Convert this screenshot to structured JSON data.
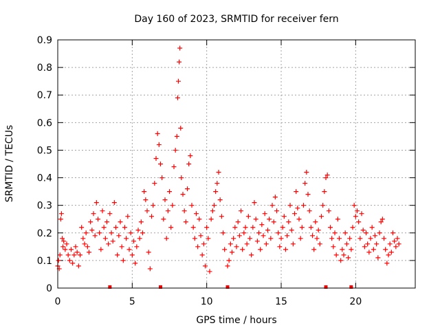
{
  "chart_data": {
    "type": "scatter",
    "title": "Day 160 of 2023, SRMTID for receiver fern",
    "xlabel": "GPS time / hours",
    "ylabel": "SRMTID / TECUs",
    "xlim": [
      0,
      24
    ],
    "ylim": [
      0,
      0.9
    ],
    "x_ticks": [
      0,
      5,
      10,
      15,
      20
    ],
    "y_ticks": [
      0,
      0.1,
      0.2,
      0.3,
      0.4,
      0.5,
      0.6,
      0.7,
      0.8,
      0.9
    ],
    "x_tick_labels": [
      "0",
      "5",
      "10",
      "15",
      "20"
    ],
    "y_tick_labels": [
      "0",
      "0.1",
      "0.2",
      "0.3",
      "0.4",
      "0.5",
      "0.6",
      "0.7",
      "0.8",
      "0.9"
    ],
    "grid": true,
    "marker": "+",
    "color": "#ff0000",
    "gap_markers_hours": [
      3.5,
      6.9,
      11.4,
      18.0,
      19.7
    ],
    "series": [
      {
        "name": "SRMTID",
        "points": [
          [
            0.0,
            0.08
          ],
          [
            0.05,
            0.1
          ],
          [
            0.1,
            0.07
          ],
          [
            0.15,
            0.12
          ],
          [
            0.2,
            0.25
          ],
          [
            0.25,
            0.27
          ],
          [
            0.3,
            0.18
          ],
          [
            0.35,
            0.15
          ],
          [
            0.4,
            0.17
          ],
          [
            0.5,
            0.14
          ],
          [
            0.6,
            0.16
          ],
          [
            0.7,
            0.12
          ],
          [
            0.8,
            0.1
          ],
          [
            0.9,
            0.14
          ],
          [
            1.0,
            0.09
          ],
          [
            1.1,
            0.12
          ],
          [
            1.2,
            0.15
          ],
          [
            1.3,
            0.13
          ],
          [
            1.4,
            0.08
          ],
          [
            1.5,
            0.12
          ],
          [
            1.6,
            0.22
          ],
          [
            1.7,
            0.18
          ],
          [
            1.8,
            0.16
          ],
          [
            1.9,
            0.2
          ],
          [
            2.0,
            0.15
          ],
          [
            2.1,
            0.13
          ],
          [
            2.2,
            0.24
          ],
          [
            2.3,
            0.21
          ],
          [
            2.4,
            0.27
          ],
          [
            2.5,
            0.19
          ],
          [
            2.6,
            0.31
          ],
          [
            2.7,
            0.25
          ],
          [
            2.8,
            0.2
          ],
          [
            2.9,
            0.14
          ],
          [
            3.0,
            0.28
          ],
          [
            3.1,
            0.22
          ],
          [
            3.2,
            0.18
          ],
          [
            3.3,
            0.24
          ],
          [
            3.4,
            0.16
          ],
          [
            3.5,
            0.27
          ],
          [
            3.6,
            0.2
          ],
          [
            3.7,
            0.17
          ],
          [
            3.8,
            0.31
          ],
          [
            3.9,
            0.22
          ],
          [
            4.0,
            0.12
          ],
          [
            4.1,
            0.19
          ],
          [
            4.2,
            0.24
          ],
          [
            4.3,
            0.15
          ],
          [
            4.4,
            0.1
          ],
          [
            4.5,
            0.22
          ],
          [
            4.6,
            0.18
          ],
          [
            4.7,
            0.26
          ],
          [
            4.8,
            0.14
          ],
          [
            4.9,
            0.2
          ],
          [
            5.0,
            0.12
          ],
          [
            5.1,
            0.17
          ],
          [
            5.2,
            0.09
          ],
          [
            5.3,
            0.15
          ],
          [
            5.4,
            0.21
          ],
          [
            5.5,
            0.18
          ],
          [
            5.6,
            0.24
          ],
          [
            5.7,
            0.2
          ],
          [
            5.8,
            0.35
          ],
          [
            5.9,
            0.32
          ],
          [
            6.0,
            0.28
          ],
          [
            6.1,
            0.13
          ],
          [
            6.2,
            0.07
          ],
          [
            6.3,
            0.26
          ],
          [
            6.4,
            0.3
          ],
          [
            6.5,
            0.38
          ],
          [
            6.6,
            0.47
          ],
          [
            6.7,
            0.56
          ],
          [
            6.8,
            0.52
          ],
          [
            6.9,
            0.45
          ],
          [
            7.0,
            0.4
          ],
          [
            7.1,
            0.25
          ],
          [
            7.2,
            0.32
          ],
          [
            7.3,
            0.18
          ],
          [
            7.4,
            0.28
          ],
          [
            7.5,
            0.35
          ],
          [
            7.6,
            0.22
          ],
          [
            7.7,
            0.3
          ],
          [
            7.8,
            0.44
          ],
          [
            7.9,
            0.5
          ],
          [
            8.0,
            0.55
          ],
          [
            8.05,
            0.69
          ],
          [
            8.1,
            0.75
          ],
          [
            8.15,
            0.82
          ],
          [
            8.2,
            0.87
          ],
          [
            8.25,
            0.58
          ],
          [
            8.3,
            0.4
          ],
          [
            8.4,
            0.34
          ],
          [
            8.5,
            0.28
          ],
          [
            8.6,
            0.24
          ],
          [
            8.7,
            0.36
          ],
          [
            8.8,
            0.45
          ],
          [
            8.9,
            0.48
          ],
          [
            9.0,
            0.3
          ],
          [
            9.1,
            0.22
          ],
          [
            9.2,
            0.18
          ],
          [
            9.3,
            0.27
          ],
          [
            9.4,
            0.15
          ],
          [
            9.5,
            0.25
          ],
          [
            9.6,
            0.19
          ],
          [
            9.7,
            0.12
          ],
          [
            9.8,
            0.16
          ],
          [
            9.9,
            0.08
          ],
          [
            10.0,
            0.22
          ],
          [
            10.1,
            0.18
          ],
          [
            10.2,
            0.06
          ],
          [
            10.3,
            0.25
          ],
          [
            10.4,
            0.28
          ],
          [
            10.5,
            0.3
          ],
          [
            10.6,
            0.35
          ],
          [
            10.7,
            0.38
          ],
          [
            10.8,
            0.42
          ],
          [
            10.9,
            0.32
          ],
          [
            11.0,
            0.26
          ],
          [
            11.1,
            0.2
          ],
          [
            11.2,
            0.14
          ],
          [
            11.4,
            0.08
          ],
          [
            11.5,
            0.1
          ],
          [
            11.6,
            0.16
          ],
          [
            11.7,
            0.13
          ],
          [
            11.8,
            0.18
          ],
          [
            11.9,
            0.22
          ],
          [
            12.0,
            0.15
          ],
          [
            12.1,
            0.24
          ],
          [
            12.2,
            0.19
          ],
          [
            12.3,
            0.28
          ],
          [
            12.4,
            0.14
          ],
          [
            12.5,
            0.2
          ],
          [
            12.6,
            0.22
          ],
          [
            12.7,
            0.16
          ],
          [
            12.8,
            0.26
          ],
          [
            12.9,
            0.18
          ],
          [
            13.0,
            0.12
          ],
          [
            13.1,
            0.22
          ],
          [
            13.2,
            0.31
          ],
          [
            13.3,
            0.25
          ],
          [
            13.4,
            0.17
          ],
          [
            13.5,
            0.2
          ],
          [
            13.6,
            0.14
          ],
          [
            13.7,
            0.23
          ],
          [
            13.8,
            0.19
          ],
          [
            13.9,
            0.27
          ],
          [
            14.0,
            0.16
          ],
          [
            14.1,
            0.21
          ],
          [
            14.2,
            0.25
          ],
          [
            14.3,
            0.18
          ],
          [
            14.4,
            0.3
          ],
          [
            14.5,
            0.24
          ],
          [
            14.6,
            0.33
          ],
          [
            14.7,
            0.28
          ],
          [
            14.8,
            0.2
          ],
          [
            14.9,
            0.15
          ],
          [
            15.0,
            0.18
          ],
          [
            15.1,
            0.22
          ],
          [
            15.2,
            0.26
          ],
          [
            15.3,
            0.14
          ],
          [
            15.4,
            0.19
          ],
          [
            15.5,
            0.24
          ],
          [
            15.6,
            0.3
          ],
          [
            15.7,
            0.21
          ],
          [
            15.8,
            0.16
          ],
          [
            15.9,
            0.27
          ],
          [
            16.0,
            0.35
          ],
          [
            16.1,
            0.29
          ],
          [
            16.2,
            0.25
          ],
          [
            16.3,
            0.18
          ],
          [
            16.4,
            0.22
          ],
          [
            16.5,
            0.3
          ],
          [
            16.6,
            0.38
          ],
          [
            16.7,
            0.42
          ],
          [
            16.8,
            0.34
          ],
          [
            16.9,
            0.28
          ],
          [
            17.0,
            0.22
          ],
          [
            17.1,
            0.19
          ],
          [
            17.2,
            0.14
          ],
          [
            17.3,
            0.24
          ],
          [
            17.4,
            0.18
          ],
          [
            17.5,
            0.21
          ],
          [
            17.6,
            0.16
          ],
          [
            17.7,
            0.26
          ],
          [
            17.8,
            0.3
          ],
          [
            17.9,
            0.35
          ],
          [
            18.0,
            0.4
          ],
          [
            18.1,
            0.41
          ],
          [
            18.2,
            0.28
          ],
          [
            18.3,
            0.22
          ],
          [
            18.4,
            0.18
          ],
          [
            18.5,
            0.15
          ],
          [
            18.6,
            0.2
          ],
          [
            18.7,
            0.12
          ],
          [
            18.8,
            0.25
          ],
          [
            18.9,
            0.18
          ],
          [
            19.0,
            0.1
          ],
          [
            19.1,
            0.14
          ],
          [
            19.2,
            0.12
          ],
          [
            19.3,
            0.2
          ],
          [
            19.4,
            0.16
          ],
          [
            19.5,
            0.11
          ],
          [
            19.6,
            0.18
          ],
          [
            19.7,
            0.14
          ],
          [
            19.8,
            0.22
          ],
          [
            19.9,
            0.3
          ],
          [
            20.0,
            0.26
          ],
          [
            20.1,
            0.28
          ],
          [
            20.2,
            0.24
          ],
          [
            20.3,
            0.18
          ],
          [
            20.4,
            0.27
          ],
          [
            20.5,
            0.21
          ],
          [
            20.6,
            0.15
          ],
          [
            20.7,
            0.2
          ],
          [
            20.8,
            0.16
          ],
          [
            20.9,
            0.13
          ],
          [
            21.0,
            0.18
          ],
          [
            21.1,
            0.22
          ],
          [
            21.2,
            0.14
          ],
          [
            21.3,
            0.19
          ],
          [
            21.4,
            0.16
          ],
          [
            21.5,
            0.11
          ],
          [
            21.6,
            0.2
          ],
          [
            21.7,
            0.24
          ],
          [
            21.8,
            0.25
          ],
          [
            21.9,
            0.18
          ],
          [
            22.0,
            0.14
          ],
          [
            22.1,
            0.09
          ],
          [
            22.2,
            0.12
          ],
          [
            22.3,
            0.16
          ],
          [
            22.4,
            0.13
          ],
          [
            22.5,
            0.2
          ],
          [
            22.6,
            0.17
          ],
          [
            22.7,
            0.15
          ],
          [
            22.8,
            0.18
          ],
          [
            22.9,
            0.16
          ]
        ]
      }
    ]
  }
}
